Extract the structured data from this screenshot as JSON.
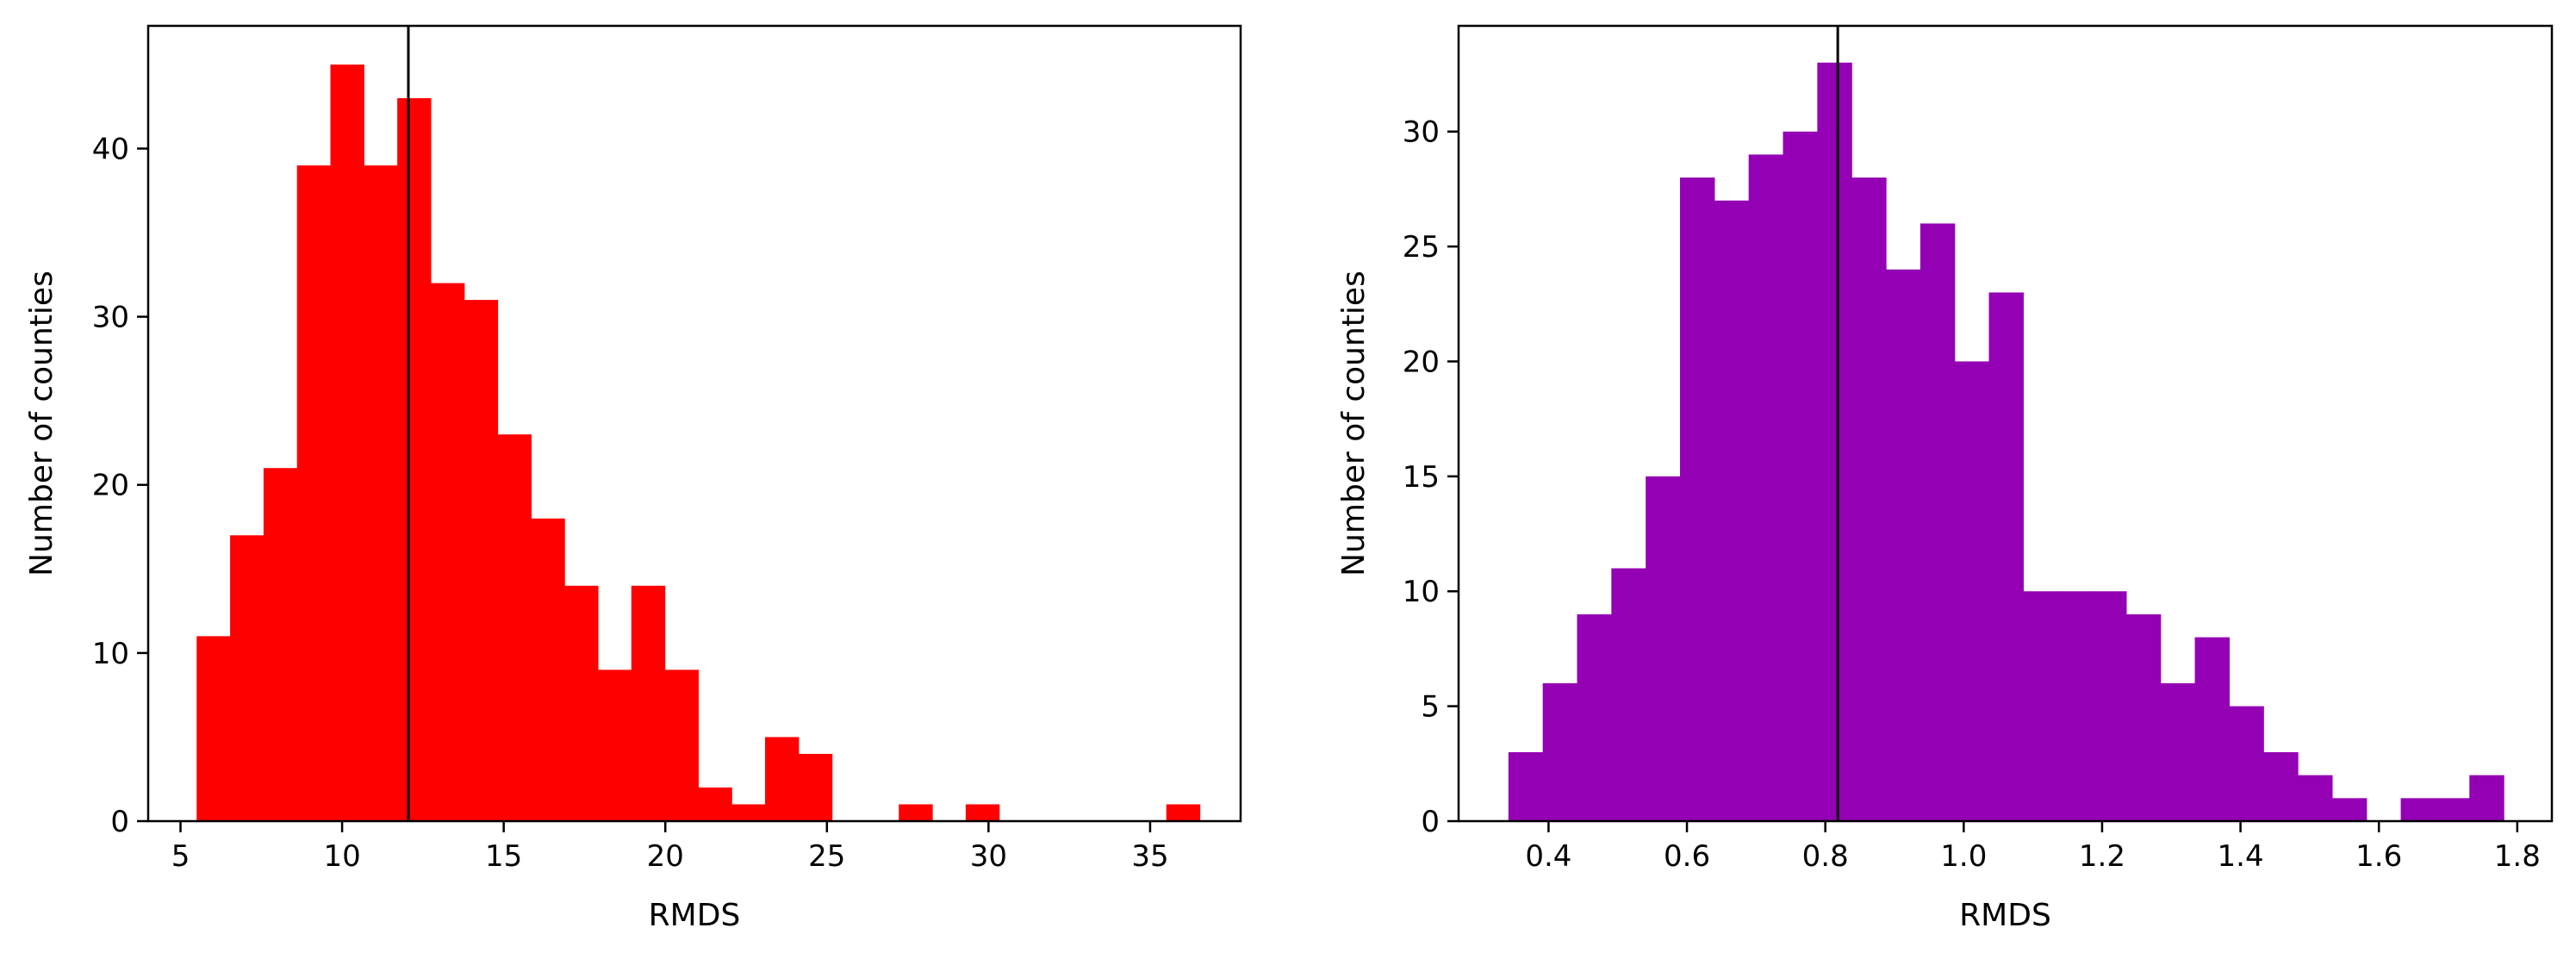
{
  "chart_data": [
    {
      "type": "bar",
      "color": "#ff0000",
      "bin_width": 1.0345,
      "bin_starts": [
        5.5,
        6.5345,
        7.569,
        8.6035,
        9.638,
        10.6725,
        11.707,
        12.7415,
        13.776,
        14.8105,
        15.845,
        16.8795,
        17.914,
        18.9485,
        19.983,
        21.0175,
        22.052,
        23.0865,
        24.121,
        25.1555,
        26.19,
        27.2245,
        28.259,
        29.2935,
        30.328,
        31.3625,
        32.397,
        33.4315,
        34.466,
        35.5005
      ],
      "values": [
        11,
        17,
        21,
        39,
        45,
        39,
        43,
        32,
        31,
        23,
        18,
        14,
        9,
        14,
        9,
        2,
        1,
        5,
        4,
        0,
        0,
        1,
        0,
        1,
        0,
        0,
        0,
        0,
        0,
        1
      ],
      "vline": 12.05,
      "xlabel": "RMDS",
      "ylabel": "Number of counties",
      "xlim": [
        4.0,
        37.8
      ],
      "ylim": [
        0,
        47.3
      ],
      "xticks": [
        5,
        10,
        15,
        20,
        25,
        30,
        35
      ],
      "yticks": [
        0,
        10,
        20,
        30,
        40
      ]
    },
    {
      "type": "bar",
      "color": "#9400b4",
      "bin_width": 0.0496,
      "bin_starts": [
        0.342,
        0.3916,
        0.4412,
        0.4908,
        0.5404,
        0.59,
        0.6396,
        0.6892,
        0.7388,
        0.7884,
        0.838,
        0.8876,
        0.9372,
        0.9868,
        1.0364,
        1.086,
        1.1356,
        1.1852,
        1.2348,
        1.2844,
        1.334,
        1.3836,
        1.4332,
        1.4828,
        1.5324,
        1.582,
        1.6316,
        1.6812,
        1.7308
      ],
      "values": [
        3,
        6,
        9,
        11,
        15,
        28,
        27,
        29,
        30,
        33,
        28,
        24,
        26,
        20,
        23,
        10,
        10,
        10,
        9,
        6,
        8,
        5,
        3,
        2,
        1,
        0,
        1,
        1,
        2
      ],
      "vline": 0.818,
      "xlabel": "RMDS",
      "ylabel": "Number of counties",
      "xlim": [
        0.27,
        1.85
      ],
      "ylim": [
        0,
        34.6
      ],
      "xticks": [
        "0.4",
        "0.6",
        "0.8",
        "1.0",
        "1.2",
        "1.4",
        "1.6",
        "1.8"
      ],
      "yticks": [
        0,
        5,
        10,
        15,
        20,
        25,
        30
      ]
    }
  ]
}
